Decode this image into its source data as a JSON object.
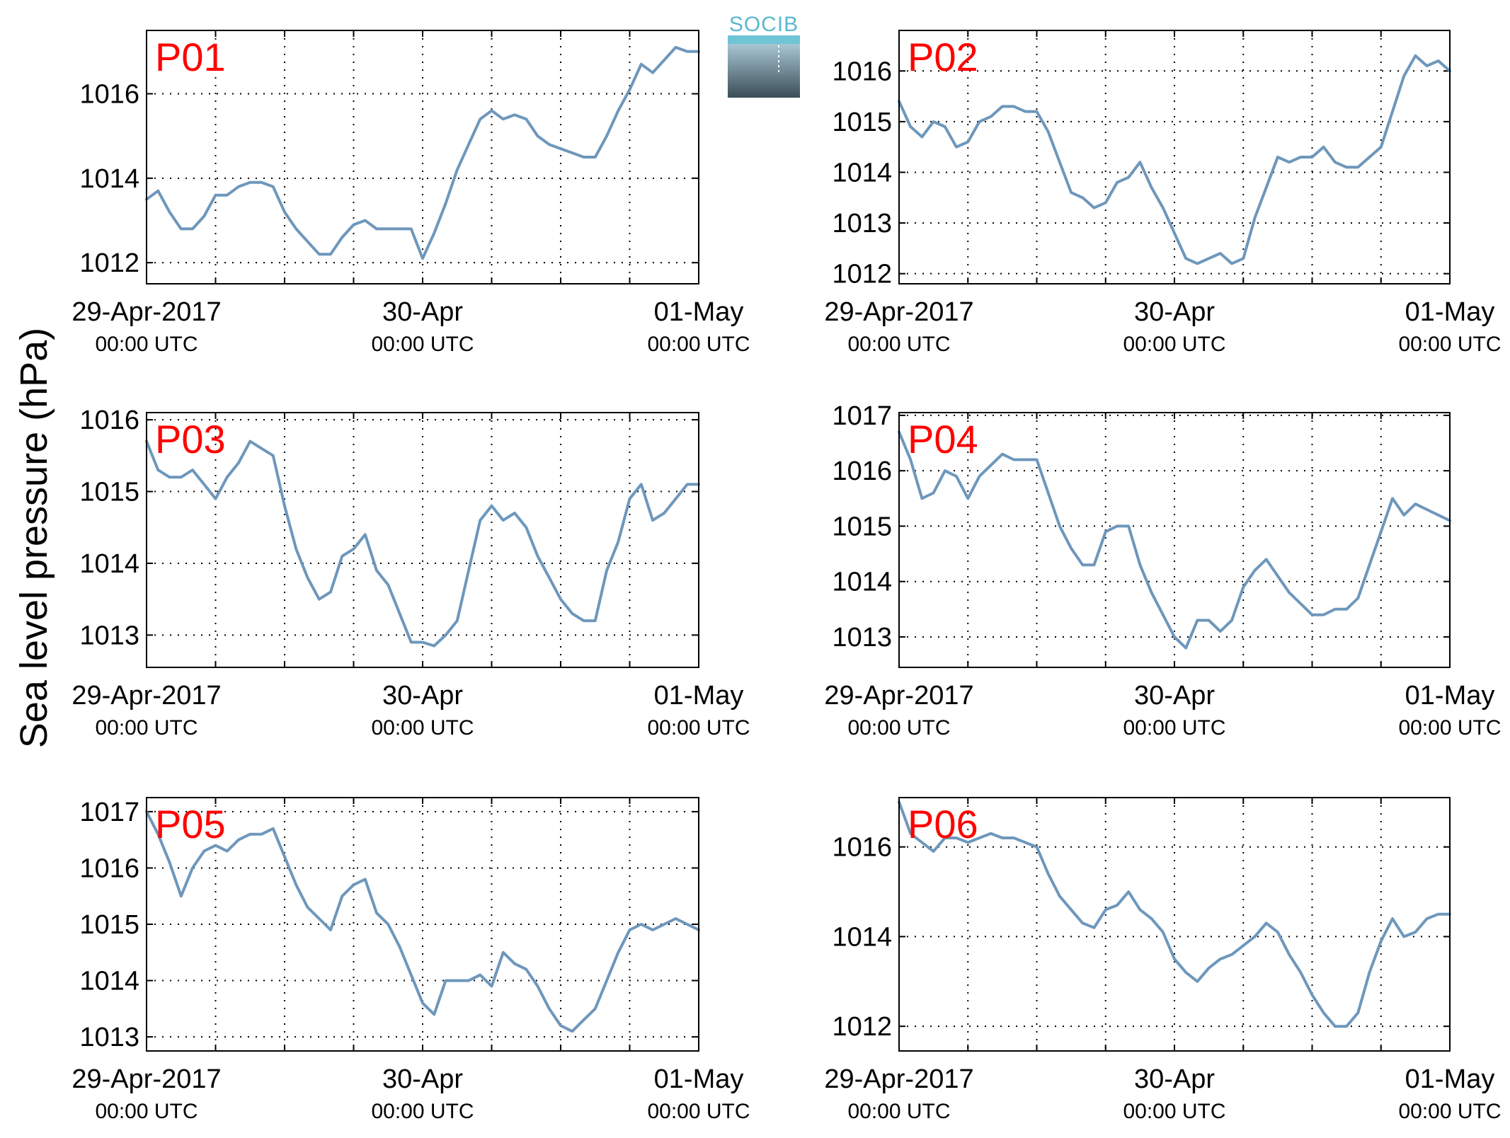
{
  "figure": {
    "ylabel": "Sea level pressure (hPa)",
    "logo": {
      "text": "SOCIB",
      "color": "#5bb8cc"
    }
  },
  "colors": {
    "line": "#6e97bb",
    "panel_label": "#ff0000",
    "grid": "#000000"
  },
  "chart_data": [
    {
      "type": "line",
      "label": "P01",
      "ylim": [
        1011.5,
        1017.5
      ],
      "yticks": [
        1012,
        1014,
        1016
      ],
      "x_ticks": [
        {
          "main": "29-Apr-2017",
          "sub": "00:00 UTC"
        },
        {
          "main": "30-Apr",
          "sub": "00:00 UTC"
        },
        {
          "main": "01-May",
          "sub": "00:00 UTC"
        }
      ],
      "xlim": [
        0,
        48
      ],
      "grid": true,
      "x": [
        0,
        1,
        2,
        3,
        4,
        5,
        6,
        7,
        8,
        9,
        10,
        11,
        12,
        13,
        14,
        15,
        16,
        17,
        18,
        19,
        20,
        21,
        22,
        23,
        24,
        25,
        26,
        27,
        28,
        29,
        30,
        31,
        32,
        33,
        34,
        35,
        36,
        37,
        38,
        39,
        40,
        41,
        42,
        43,
        44,
        45,
        46,
        47,
        48
      ],
      "values": [
        1013.5,
        1013.7,
        1013.2,
        1012.8,
        1012.8,
        1013.1,
        1013.6,
        1013.6,
        1013.8,
        1013.9,
        1013.9,
        1013.8,
        1013.2,
        1012.8,
        1012.5,
        1012.2,
        1012.2,
        1012.6,
        1012.9,
        1013.0,
        1012.8,
        1012.8,
        1012.8,
        1012.8,
        1012.1,
        1012.7,
        1013.4,
        1014.2,
        1014.8,
        1015.4,
        1015.6,
        1015.4,
        1015.5,
        1015.4,
        1015.0,
        1014.8,
        1014.7,
        1014.6,
        1014.5,
        1014.5,
        1015.0,
        1015.6,
        1016.1,
        1016.7,
        1016.5,
        1016.8,
        1017.1,
        1017.0,
        1017.0
      ]
    },
    {
      "type": "line",
      "label": "P02",
      "ylim": [
        1011.8,
        1016.8
      ],
      "yticks": [
        1012,
        1013,
        1014,
        1015,
        1016
      ],
      "x_ticks": [
        {
          "main": "29-Apr-2017",
          "sub": "00:00 UTC"
        },
        {
          "main": "30-Apr",
          "sub": "00:00 UTC"
        },
        {
          "main": "01-May",
          "sub": "00:00 UTC"
        }
      ],
      "xlim": [
        0,
        48
      ],
      "grid": true,
      "x": [
        0,
        1,
        2,
        3,
        4,
        5,
        6,
        7,
        8,
        9,
        10,
        11,
        12,
        13,
        14,
        15,
        16,
        17,
        18,
        19,
        20,
        21,
        22,
        23,
        24,
        25,
        26,
        27,
        28,
        29,
        30,
        31,
        32,
        33,
        34,
        35,
        36,
        37,
        38,
        39,
        40,
        41,
        42,
        43,
        44,
        45,
        46,
        47,
        48
      ],
      "values": [
        1015.4,
        1014.9,
        1014.7,
        1015.0,
        1014.9,
        1014.5,
        1014.6,
        1015.0,
        1015.1,
        1015.3,
        1015.3,
        1015.2,
        1015.2,
        1014.8,
        1014.2,
        1013.6,
        1013.5,
        1013.3,
        1013.4,
        1013.8,
        1013.9,
        1014.2,
        1013.7,
        1013.3,
        1012.8,
        1012.3,
        1012.2,
        1012.3,
        1012.4,
        1012.2,
        1012.3,
        1013.1,
        1013.7,
        1014.3,
        1014.2,
        1014.3,
        1014.3,
        1014.5,
        1014.2,
        1014.1,
        1014.1,
        1014.3,
        1014.5,
        1015.2,
        1015.9,
        1016.3,
        1016.1,
        1016.2,
        1016.0
      ]
    },
    {
      "type": "line",
      "label": "P03",
      "ylim": [
        1012.55,
        1016.1
      ],
      "yticks": [
        1013,
        1014,
        1015,
        1016
      ],
      "x_ticks": [
        {
          "main": "29-Apr-2017",
          "sub": "00:00 UTC"
        },
        {
          "main": "30-Apr",
          "sub": "00:00 UTC"
        },
        {
          "main": "01-May",
          "sub": "00:00 UTC"
        }
      ],
      "xlim": [
        0,
        48
      ],
      "grid": true,
      "x": [
        0,
        1,
        2,
        3,
        4,
        5,
        6,
        7,
        8,
        9,
        10,
        11,
        12,
        13,
        14,
        15,
        16,
        17,
        18,
        19,
        20,
        21,
        22,
        23,
        24,
        25,
        26,
        27,
        28,
        29,
        30,
        31,
        32,
        33,
        34,
        35,
        36,
        37,
        38,
        39,
        40,
        41,
        42,
        43,
        44,
        45,
        46,
        47,
        48
      ],
      "values": [
        1015.7,
        1015.3,
        1015.2,
        1015.2,
        1015.3,
        1015.1,
        1014.9,
        1015.2,
        1015.4,
        1015.7,
        1015.6,
        1015.5,
        1014.8,
        1014.2,
        1013.8,
        1013.5,
        1013.6,
        1014.1,
        1014.2,
        1014.4,
        1013.9,
        1013.7,
        1013.3,
        1012.9,
        1012.9,
        1012.85,
        1013.0,
        1013.2,
        1013.9,
        1014.6,
        1014.8,
        1014.6,
        1014.7,
        1014.5,
        1014.1,
        1013.8,
        1013.5,
        1013.3,
        1013.2,
        1013.2,
        1013.9,
        1014.3,
        1014.9,
        1015.1,
        1014.6,
        1014.7,
        1014.9,
        1015.1,
        1015.1
      ]
    },
    {
      "type": "line",
      "label": "P04",
      "ylim": [
        1012.45,
        1017.05
      ],
      "yticks": [
        1013,
        1014,
        1015,
        1016,
        1017
      ],
      "x_ticks": [
        {
          "main": "29-Apr-2017",
          "sub": "00:00 UTC"
        },
        {
          "main": "30-Apr",
          "sub": "00:00 UTC"
        },
        {
          "main": "01-May",
          "sub": "00:00 UTC"
        }
      ],
      "xlim": [
        0,
        48
      ],
      "grid": true,
      "x": [
        0,
        1,
        2,
        3,
        4,
        5,
        6,
        7,
        8,
        9,
        10,
        11,
        12,
        13,
        14,
        15,
        16,
        17,
        18,
        19,
        20,
        21,
        22,
        23,
        24,
        25,
        26,
        27,
        28,
        29,
        30,
        31,
        32,
        33,
        34,
        35,
        36,
        37,
        38,
        39,
        40,
        41,
        42,
        43,
        44,
        45,
        46,
        47,
        48
      ],
      "values": [
        1016.7,
        1016.2,
        1015.5,
        1015.6,
        1016.0,
        1015.9,
        1015.5,
        1015.9,
        1016.1,
        1016.3,
        1016.2,
        1016.2,
        1016.2,
        1015.6,
        1015.0,
        1014.6,
        1014.3,
        1014.3,
        1014.9,
        1015.0,
        1015.0,
        1014.3,
        1013.8,
        1013.4,
        1013.0,
        1012.8,
        1013.3,
        1013.3,
        1013.1,
        1013.3,
        1013.9,
        1014.2,
        1014.4,
        1014.1,
        1013.8,
        1013.6,
        1013.4,
        1013.4,
        1013.5,
        1013.5,
        1013.7,
        1014.3,
        1014.9,
        1015.5,
        1015.2,
        1015.4,
        1015.3,
        1015.2,
        1015.1
      ]
    },
    {
      "type": "line",
      "label": "P05",
      "ylim": [
        1012.75,
        1017.25
      ],
      "yticks": [
        1013,
        1014,
        1015,
        1016,
        1017
      ],
      "x_ticks": [
        {
          "main": "29-Apr-2017",
          "sub": "00:00 UTC"
        },
        {
          "main": "30-Apr",
          "sub": "00:00 UTC"
        },
        {
          "main": "01-May",
          "sub": "00:00 UTC"
        }
      ],
      "xlim": [
        0,
        48
      ],
      "grid": true,
      "x": [
        0,
        1,
        2,
        3,
        4,
        5,
        6,
        7,
        8,
        9,
        10,
        11,
        12,
        13,
        14,
        15,
        16,
        17,
        18,
        19,
        20,
        21,
        22,
        23,
        24,
        25,
        26,
        27,
        28,
        29,
        30,
        31,
        32,
        33,
        34,
        35,
        36,
        37,
        38,
        39,
        40,
        41,
        42,
        43,
        44,
        45,
        46,
        47,
        48
      ],
      "values": [
        1017.0,
        1016.6,
        1016.1,
        1015.5,
        1016.0,
        1016.3,
        1016.4,
        1016.3,
        1016.5,
        1016.6,
        1016.6,
        1016.7,
        1016.2,
        1015.7,
        1015.3,
        1015.1,
        1014.9,
        1015.5,
        1015.7,
        1015.8,
        1015.2,
        1015.0,
        1014.6,
        1014.1,
        1013.6,
        1013.4,
        1014.0,
        1014.0,
        1014.0,
        1014.1,
        1013.9,
        1014.5,
        1014.3,
        1014.2,
        1013.9,
        1013.5,
        1013.2,
        1013.1,
        1013.3,
        1013.5,
        1014.0,
        1014.5,
        1014.9,
        1015.0,
        1014.9,
        1015.0,
        1015.1,
        1015.0,
        1014.9
      ]
    },
    {
      "type": "line",
      "label": "P06",
      "ylim": [
        1011.45,
        1017.1
      ],
      "yticks": [
        1012,
        1014,
        1016
      ],
      "x_ticks": [
        {
          "main": "29-Apr-2017",
          "sub": "00:00 UTC"
        },
        {
          "main": "30-Apr",
          "sub": "00:00 UTC"
        },
        {
          "main": "01-May",
          "sub": "00:00 UTC"
        }
      ],
      "xlim": [
        0,
        48
      ],
      "grid": true,
      "x": [
        0,
        1,
        2,
        3,
        4,
        5,
        6,
        7,
        8,
        9,
        10,
        11,
        12,
        13,
        14,
        15,
        16,
        17,
        18,
        19,
        20,
        21,
        22,
        23,
        24,
        25,
        26,
        27,
        28,
        29,
        30,
        31,
        32,
        33,
        34,
        35,
        36,
        37,
        38,
        39,
        40,
        41,
        42,
        43,
        44,
        45,
        46,
        47,
        48
      ],
      "values": [
        1017.0,
        1016.3,
        1016.1,
        1015.9,
        1016.2,
        1016.2,
        1016.1,
        1016.2,
        1016.3,
        1016.2,
        1016.2,
        1016.1,
        1016.0,
        1015.4,
        1014.9,
        1014.6,
        1014.3,
        1014.2,
        1014.6,
        1014.7,
        1015.0,
        1014.6,
        1014.4,
        1014.1,
        1013.5,
        1013.2,
        1013.0,
        1013.3,
        1013.5,
        1013.6,
        1013.8,
        1014.0,
        1014.3,
        1014.1,
        1013.6,
        1013.2,
        1012.7,
        1012.3,
        1012.0,
        1012.0,
        1012.3,
        1013.2,
        1013.9,
        1014.4,
        1014.0,
        1014.1,
        1014.4,
        1014.5,
        1014.5
      ]
    }
  ]
}
